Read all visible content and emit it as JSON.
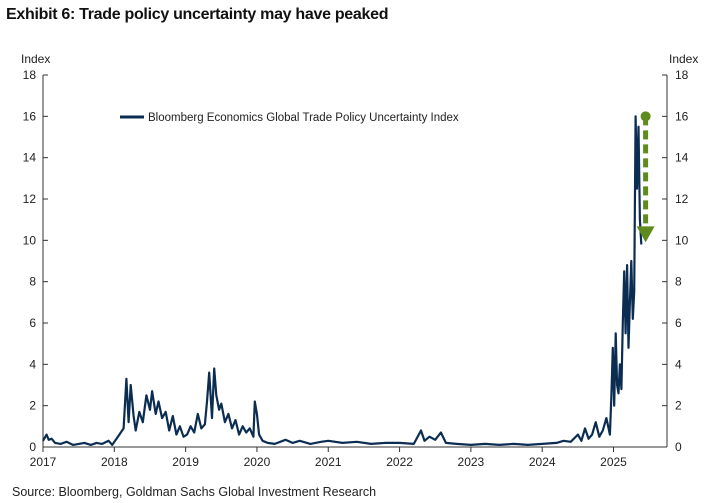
{
  "title": "Exhibit 6: Trade policy uncertainty may have peaked",
  "source": "Source: Bloomberg, Goldman Sachs Global Investment Research",
  "chart_data": {
    "type": "line",
    "ylabel_left": "Index",
    "ylabel_right": "Index",
    "ylim": [
      0,
      18
    ],
    "yticks": [
      "0",
      "2",
      "4",
      "6",
      "8",
      "10",
      "12",
      "14",
      "16",
      "18"
    ],
    "xlim": [
      2017,
      2025.75
    ],
    "xticks": [
      {
        "value": 2017,
        "label": "2017"
      },
      {
        "value": 2018,
        "label": "2018"
      },
      {
        "value": 2019,
        "label": "2019"
      },
      {
        "value": 2020,
        "label": "2020"
      },
      {
        "value": 2021,
        "label": "2021"
      },
      {
        "value": 2022,
        "label": "2022"
      },
      {
        "value": 2023,
        "label": "2023"
      },
      {
        "value": 2024,
        "label": "2024"
      },
      {
        "value": 2025,
        "label": "2025"
      }
    ],
    "grid": false,
    "legend_position": "top-left",
    "series": [
      {
        "name": "Bloomberg Economics Global Trade Policy Uncertainty Index",
        "color": "#0c2d52",
        "x": [
          2017.0,
          2017.05,
          2017.08,
          2017.12,
          2017.17,
          2017.25,
          2017.33,
          2017.42,
          2017.5,
          2017.58,
          2017.67,
          2017.75,
          2017.83,
          2017.92,
          2017.97,
          2018.05,
          2018.13,
          2018.17,
          2018.2,
          2018.23,
          2018.27,
          2018.3,
          2018.35,
          2018.4,
          2018.45,
          2018.5,
          2018.53,
          2018.58,
          2018.62,
          2018.67,
          2018.72,
          2018.77,
          2018.82,
          2018.87,
          2018.92,
          2018.97,
          2019.02,
          2019.07,
          2019.12,
          2019.17,
          2019.22,
          2019.27,
          2019.3,
          2019.33,
          2019.37,
          2019.4,
          2019.43,
          2019.47,
          2019.5,
          2019.55,
          2019.6,
          2019.65,
          2019.7,
          2019.75,
          2019.8,
          2019.85,
          2019.9,
          2019.95,
          2019.97,
          2020.0,
          2020.03,
          2020.08,
          2020.15,
          2020.25,
          2020.4,
          2020.5,
          2020.6,
          2020.75,
          2020.9,
          2021.0,
          2021.2,
          2021.4,
          2021.6,
          2021.8,
          2022.0,
          2022.2,
          2022.3,
          2022.35,
          2022.42,
          2022.5,
          2022.58,
          2022.65,
          2022.8,
          2023.0,
          2023.2,
          2023.4,
          2023.6,
          2023.8,
          2024.0,
          2024.2,
          2024.3,
          2024.4,
          2024.5,
          2024.55,
          2024.6,
          2024.65,
          2024.7,
          2024.75,
          2024.8,
          2024.85,
          2024.9,
          2024.95,
          2024.97,
          2024.99,
          2025.01,
          2025.03,
          2025.05,
          2025.07,
          2025.09,
          2025.11,
          2025.13,
          2025.15,
          2025.17,
          2025.19,
          2025.21,
          2025.23,
          2025.25,
          2025.27,
          2025.29,
          2025.31,
          2025.33,
          2025.35,
          2025.37,
          2025.39
        ],
        "y": [
          0.3,
          0.6,
          0.35,
          0.4,
          0.2,
          0.15,
          0.25,
          0.1,
          0.15,
          0.2,
          0.1,
          0.2,
          0.15,
          0.3,
          0.1,
          0.5,
          0.9,
          3.3,
          1.2,
          3.0,
          1.5,
          0.8,
          1.7,
          1.2,
          2.5,
          1.8,
          2.7,
          1.6,
          2.2,
          1.4,
          1.7,
          0.8,
          1.5,
          0.6,
          1.0,
          0.5,
          0.6,
          1.0,
          0.7,
          1.6,
          0.9,
          1.1,
          2.2,
          3.6,
          1.4,
          3.8,
          2.5,
          1.8,
          2.1,
          1.2,
          1.6,
          0.9,
          1.3,
          0.6,
          1.0,
          0.7,
          0.9,
          0.5,
          2.2,
          1.6,
          0.6,
          0.3,
          0.2,
          0.15,
          0.35,
          0.2,
          0.3,
          0.15,
          0.25,
          0.3,
          0.2,
          0.25,
          0.15,
          0.2,
          0.2,
          0.15,
          0.8,
          0.3,
          0.5,
          0.35,
          0.7,
          0.2,
          0.15,
          0.1,
          0.15,
          0.1,
          0.15,
          0.1,
          0.15,
          0.2,
          0.3,
          0.25,
          0.6,
          0.3,
          0.9,
          0.4,
          0.6,
          1.2,
          0.5,
          0.8,
          1.4,
          0.6,
          2.5,
          4.8,
          2.0,
          5.5,
          3.0,
          2.6,
          4.0,
          2.8,
          6.0,
          8.5,
          5.5,
          8.8,
          4.8,
          7.0,
          9.0,
          6.2,
          7.5,
          16.0,
          12.5,
          15.5,
          11.0,
          9.8
        ]
      }
    ],
    "annotation": {
      "type": "arrow",
      "color": "#5f8b1e",
      "x": 2025.45,
      "y_start": 16.0,
      "y_end": 10.0
    }
  }
}
